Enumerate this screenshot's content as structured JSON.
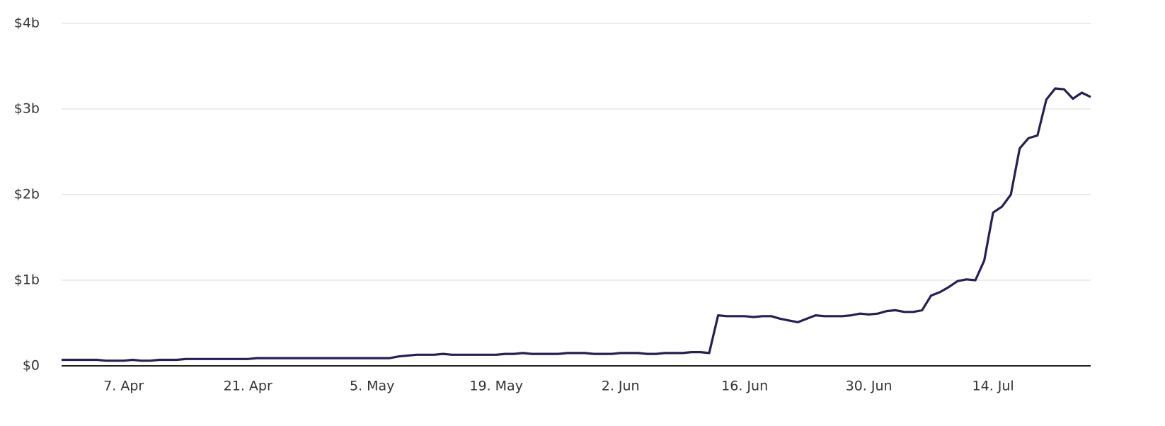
{
  "chart_data": {
    "type": "line",
    "categories": [
      null,
      null,
      null,
      null,
      null,
      null,
      null,
      "7. Apr",
      null,
      null,
      null,
      null,
      null,
      null,
      null,
      null,
      null,
      null,
      null,
      null,
      null,
      "21. Apr",
      null,
      null,
      null,
      null,
      null,
      null,
      null,
      null,
      null,
      null,
      null,
      null,
      null,
      "5. May",
      null,
      null,
      null,
      null,
      null,
      null,
      null,
      null,
      null,
      null,
      null,
      null,
      null,
      "19. May",
      null,
      null,
      null,
      null,
      null,
      null,
      null,
      null,
      null,
      null,
      null,
      null,
      null,
      "2. Jun",
      null,
      null,
      null,
      null,
      null,
      null,
      null,
      null,
      null,
      null,
      null,
      null,
      null,
      "16. Jun",
      null,
      null,
      null,
      null,
      null,
      null,
      null,
      null,
      null,
      null,
      null,
      null,
      null,
      "30. Jun",
      null,
      null,
      null,
      null,
      null,
      null,
      null,
      null,
      null,
      null,
      null,
      null,
      null,
      "14. Jul",
      null,
      null,
      null,
      null,
      null,
      null,
      null,
      null,
      null,
      null,
      null
    ],
    "values": [
      0.07,
      0.07,
      0.07,
      0.07,
      0.07,
      0.06,
      0.06,
      0.06,
      0.07,
      0.06,
      0.06,
      0.07,
      0.07,
      0.07,
      0.08,
      0.08,
      0.08,
      0.08,
      0.08,
      0.08,
      0.08,
      0.08,
      0.09,
      0.09,
      0.09,
      0.09,
      0.09,
      0.09,
      0.09,
      0.09,
      0.09,
      0.09,
      0.09,
      0.09,
      0.09,
      0.09,
      0.09,
      0.09,
      0.11,
      0.12,
      0.13,
      0.13,
      0.13,
      0.14,
      0.13,
      0.13,
      0.13,
      0.13,
      0.13,
      0.13,
      0.14,
      0.14,
      0.15,
      0.14,
      0.14,
      0.14,
      0.14,
      0.15,
      0.15,
      0.15,
      0.14,
      0.14,
      0.14,
      0.15,
      0.15,
      0.15,
      0.14,
      0.14,
      0.15,
      0.15,
      0.15,
      0.16,
      0.16,
      0.15,
      0.59,
      0.58,
      0.58,
      0.58,
      0.57,
      0.58,
      0.58,
      0.55,
      0.53,
      0.51,
      0.55,
      0.59,
      0.58,
      0.58,
      0.58,
      0.59,
      0.61,
      0.6,
      0.61,
      0.64,
      0.65,
      0.63,
      0.63,
      0.65,
      0.82,
      0.86,
      0.92,
      0.99,
      1.01,
      1.0,
      1.23,
      1.79,
      1.86,
      2.0,
      2.54,
      2.66,
      2.69,
      3.11,
      3.24,
      3.23,
      3.12,
      3.19,
      3.14
    ],
    "color": "#241f55",
    "ylim": [
      0,
      4
    ],
    "yticks": [
      {
        "value": 0,
        "label": "$0"
      },
      {
        "value": 1,
        "label": "$1b"
      },
      {
        "value": 2,
        "label": "$2b"
      },
      {
        "value": 3,
        "label": "$3b"
      },
      {
        "value": 4,
        "label": "$4b"
      }
    ],
    "grid": true
  }
}
